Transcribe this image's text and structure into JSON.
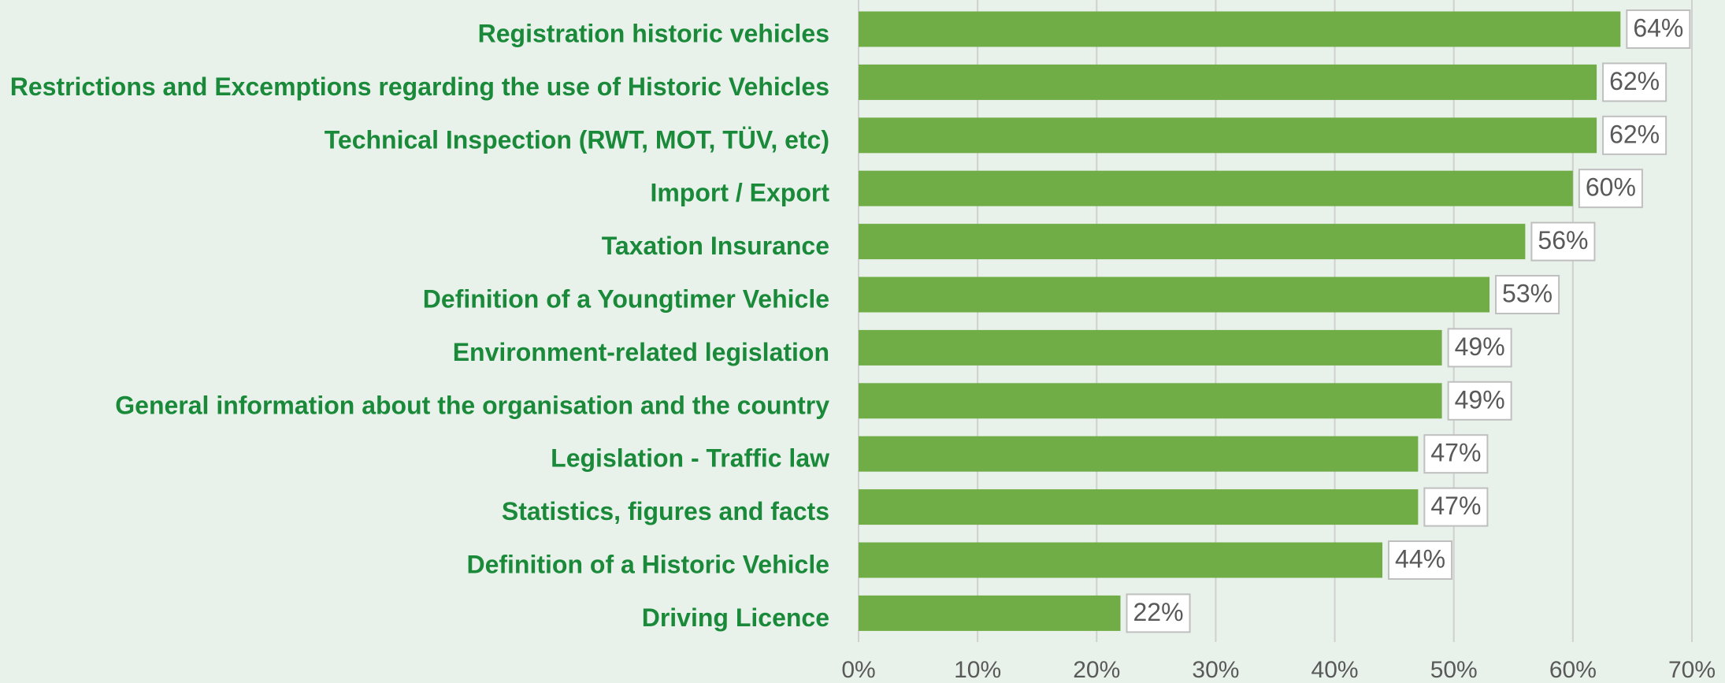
{
  "chart_data": {
    "type": "bar",
    "orientation": "horizontal",
    "categories": [
      "Registration historic vehicles",
      "Restrictions and Excemptions regarding the use of Historic Vehicles",
      "Technical Inspection (RWT, MOT, TÜV, etc)",
      "Import / Export",
      "Taxation Insurance",
      "Definition of a Youngtimer Vehicle",
      "Environment-related legislation",
      "General information about the organisation and the country",
      "Legislation - Traffic law",
      "Statistics, figures and facts",
      "Definition of a Historic Vehicle",
      "Driving Licence"
    ],
    "values": [
      64,
      62,
      62,
      60,
      56,
      53,
      49,
      49,
      47,
      47,
      44,
      22
    ],
    "value_labels": [
      "64%",
      "62%",
      "62%",
      "60%",
      "56%",
      "53%",
      "49%",
      "49%",
      "47%",
      "47%",
      "44%",
      "22%"
    ],
    "color": "#70ad47",
    "xlim": [
      0,
      70
    ],
    "xticks": [
      {
        "value": 0,
        "label": "0%"
      },
      {
        "value": 10,
        "label": "10%"
      },
      {
        "value": 20,
        "label": "20%"
      },
      {
        "value": 30,
        "label": "30%"
      },
      {
        "value": 40,
        "label": "40%"
      },
      {
        "value": 50,
        "label": "50%"
      },
      {
        "value": 60,
        "label": "60%"
      },
      {
        "value": 70,
        "label": "70%"
      }
    ],
    "grid": true
  }
}
